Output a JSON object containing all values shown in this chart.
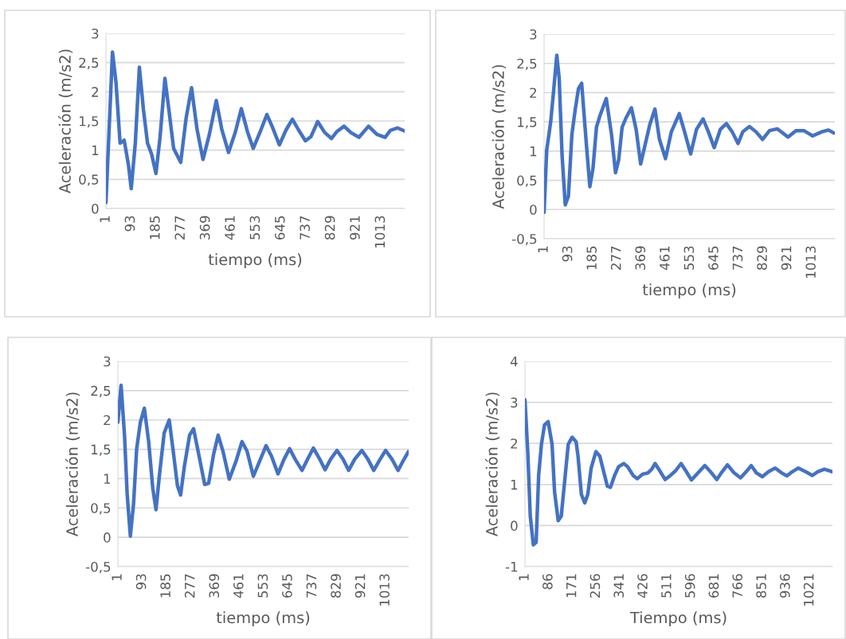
{
  "chart_data": [
    {
      "type": "line",
      "xlabel": "tiempo (ms)",
      "ylabel": "Aceleración (m/s2)",
      "grid": "y",
      "xlim": [
        1,
        1100
      ],
      "ylim": [
        0,
        3
      ],
      "xticks": [
        1,
        93,
        185,
        277,
        369,
        461,
        553,
        645,
        737,
        829,
        921,
        1013
      ],
      "yticks": [
        0,
        {
          "value": 0.5,
          "label": "0,5"
        },
        1,
        {
          "value": 1.5,
          "label": "1,5"
        },
        2,
        {
          "value": 2.5,
          "label": "2,5"
        },
        3
      ],
      "series": [
        {
          "color": "#4472c4",
          "x": [
            1,
            25,
            38,
            53,
            68,
            84,
            94,
            109,
            124,
            139,
            154,
            169,
            185,
            200,
            218,
            235,
            250,
            276,
            296,
            316,
            336,
            358,
            381,
            407,
            427,
            452,
            477,
            499,
            522,
            543,
            568,
            593,
            613,
            639,
            664,
            687,
            709,
            735,
            755,
            780,
            806,
            831,
            851,
            877,
            902,
            932,
            967,
            998,
            1028,
            1048,
            1073,
            1099
          ],
          "values": [
            0.1,
            2.68,
            2.16,
            1.12,
            1.17,
            0.74,
            0.34,
            1.12,
            2.42,
            1.69,
            1.12,
            0.93,
            0.6,
            1.22,
            2.23,
            1.6,
            1.03,
            0.79,
            1.55,
            2.07,
            1.36,
            0.84,
            1.26,
            1.85,
            1.36,
            0.96,
            1.31,
            1.71,
            1.31,
            1.03,
            1.31,
            1.61,
            1.4,
            1.09,
            1.35,
            1.53,
            1.35,
            1.16,
            1.23,
            1.49,
            1.3,
            1.2,
            1.32,
            1.41,
            1.3,
            1.22,
            1.41,
            1.27,
            1.22,
            1.34,
            1.38,
            1.33
          ]
        }
      ]
    },
    {
      "type": "line",
      "xlabel": "tiempo (ms)",
      "ylabel": "Aceleración (m/s2)",
      "grid": "y",
      "xlim": [
        1,
        1100
      ],
      "ylim": [
        -0.5,
        3
      ],
      "xticks": [
        1,
        93,
        185,
        277,
        369,
        461,
        553,
        645,
        737,
        829,
        921,
        1013
      ],
      "yticks": [
        {
          "value": -0.5,
          "label": "-0,5"
        },
        0,
        {
          "value": 0.5,
          "label": "0,5"
        },
        1,
        {
          "value": 1.5,
          "label": "1,5"
        },
        2,
        {
          "value": 2.5,
          "label": "2,5"
        },
        3
      ],
      "series": [
        {
          "color": "#4472c4",
          "x": [
            1,
            11,
            26,
            36,
            49,
            58,
            69,
            81,
            93,
            106,
            119,
            131,
            143,
            161,
            174,
            186,
            199,
            211,
            236,
            256,
            271,
            283,
            296,
            311,
            331,
            349,
            366,
            383,
            401,
            420,
            437,
            460,
            482,
            512,
            532,
            555,
            577,
            602,
            622,
            644,
            667,
            690,
            712,
            734,
            752,
            777,
            802,
            827,
            853,
            883,
            923,
            953,
            983,
            1016,
            1051,
            1076,
            1096
          ],
          "values": [
            -0.05,
            1.02,
            1.5,
            1.98,
            2.64,
            2.25,
            0.93,
            0.08,
            0.23,
            1.28,
            1.72,
            2.07,
            2.16,
            1.11,
            0.39,
            0.71,
            1.41,
            1.59,
            1.9,
            1.28,
            0.63,
            0.85,
            1.41,
            1.57,
            1.74,
            1.37,
            0.78,
            1.11,
            1.46,
            1.72,
            1.2,
            0.87,
            1.33,
            1.64,
            1.33,
            0.95,
            1.37,
            1.55,
            1.33,
            1.06,
            1.37,
            1.47,
            1.33,
            1.13,
            1.33,
            1.42,
            1.33,
            1.2,
            1.35,
            1.38,
            1.24,
            1.35,
            1.35,
            1.26,
            1.33,
            1.36,
            1.31
          ]
        }
      ]
    },
    {
      "type": "line",
      "xlabel": "tiempo (ms)",
      "ylabel": "Aceleración (m/s2)",
      "grid": "y",
      "xlim": [
        1,
        1100
      ],
      "ylim": [
        -0.5,
        3
      ],
      "xticks": [
        1,
        93,
        185,
        277,
        369,
        461,
        553,
        645,
        737,
        829,
        921,
        1013
      ],
      "yticks": [
        {
          "value": -0.5,
          "label": "-0,5"
        },
        0,
        {
          "value": 0.5,
          "label": "0,5"
        },
        1,
        {
          "value": 1.5,
          "label": "1,5"
        },
        2,
        {
          "value": 2.5,
          "label": "2,5"
        },
        3
      ],
      "series": [
        {
          "color": "#4472c4",
          "x": [
            1,
            13,
            26,
            36,
            48,
            60,
            72,
            86,
            101,
            117,
            133,
            145,
            158,
            176,
            195,
            210,
            226,
            238,
            252,
            272,
            287,
            308,
            329,
            344,
            363,
            380,
            398,
            422,
            447,
            470,
            489,
            513,
            536,
            561,
            582,
            606,
            629,
            650,
            671,
            697,
            718,
            740,
            764,
            784,
            805,
            829,
            852,
            873,
            896,
            923,
            946,
            968,
            992,
            1013,
            1037,
            1060,
            1080,
            1099
          ],
          "values": [
            1.96,
            2.59,
            1.74,
            0.74,
            0.02,
            0.56,
            1.51,
            1.96,
            2.2,
            1.64,
            0.83,
            0.47,
            1.06,
            1.78,
            2.0,
            1.47,
            0.88,
            0.72,
            1.2,
            1.74,
            1.85,
            1.38,
            0.9,
            0.92,
            1.42,
            1.74,
            1.47,
            0.99,
            1.29,
            1.63,
            1.47,
            1.04,
            1.29,
            1.56,
            1.38,
            1.08,
            1.33,
            1.51,
            1.33,
            1.14,
            1.33,
            1.52,
            1.33,
            1.15,
            1.33,
            1.48,
            1.33,
            1.14,
            1.33,
            1.48,
            1.33,
            1.14,
            1.33,
            1.48,
            1.33,
            1.14,
            1.31,
            1.46
          ]
        }
      ]
    },
    {
      "type": "line",
      "xlabel": "Tiempo (ms)",
      "ylabel": "Aceleración (m/s2)",
      "grid": "y",
      "xlim": [
        1,
        1102
      ],
      "ylim": [
        -1,
        4
      ],
      "xticks": [
        1,
        86,
        171,
        256,
        341,
        426,
        511,
        596,
        681,
        766,
        851,
        936,
        1021
      ],
      "yticks": [
        -1,
        0,
        1,
        2,
        3,
        4
      ],
      "series": [
        {
          "color": "#4472c4",
          "x": [
            1,
            11,
            20,
            31,
            41,
            50,
            60,
            71,
            84,
            98,
            107,
            120,
            131,
            146,
            156,
            170,
            184,
            191,
            203,
            215,
            226,
            238,
            255,
            269,
            284,
            296,
            307,
            322,
            336,
            355,
            369,
            388,
            403,
            422,
            441,
            455,
            467,
            483,
            503,
            522,
            541,
            560,
            579,
            597,
            616,
            645,
            669,
            688,
            707,
            726,
            750,
            773,
            793,
            811,
            830,
            851,
            873,
            897,
            920,
            939,
            958,
            980,
            1006,
            1030,
            1049,
            1073,
            1102
          ],
          "values": [
            3.06,
            1.8,
            0.23,
            -0.47,
            -0.41,
            1.22,
            1.98,
            2.45,
            2.53,
            1.98,
            0.82,
            0.12,
            0.23,
            1.28,
            1.98,
            2.15,
            2.04,
            1.69,
            0.76,
            0.55,
            0.76,
            1.4,
            1.8,
            1.69,
            1.28,
            0.96,
            0.93,
            1.22,
            1.43,
            1.51,
            1.43,
            1.22,
            1.14,
            1.25,
            1.28,
            1.37,
            1.51,
            1.34,
            1.12,
            1.22,
            1.34,
            1.51,
            1.31,
            1.11,
            1.25,
            1.46,
            1.28,
            1.12,
            1.31,
            1.48,
            1.28,
            1.16,
            1.31,
            1.46,
            1.28,
            1.19,
            1.31,
            1.4,
            1.28,
            1.21,
            1.31,
            1.4,
            1.31,
            1.22,
            1.31,
            1.37,
            1.31
          ]
        }
      ]
    }
  ]
}
